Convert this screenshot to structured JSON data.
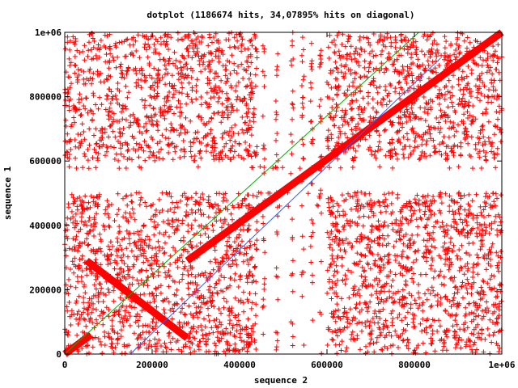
{
  "chart_data": {
    "type": "scatter",
    "title": "dotplot (1186674 hits, 34,07895% hits on diagonal)",
    "xlabel": "sequence 2",
    "ylabel": "sequence 1",
    "xlim": [
      0,
      1000000
    ],
    "ylim": [
      0,
      1000000
    ],
    "x_ticks": [
      0,
      200000,
      400000,
      600000,
      800000,
      1000000
    ],
    "x_tick_labels": [
      "0",
      "200000",
      "400000",
      "600000",
      "800000",
      "1e+06"
    ],
    "y_ticks": [
      0,
      200000,
      400000,
      600000,
      800000,
      1000000
    ],
    "y_tick_labels": [
      "0",
      "200000",
      "400000",
      "600000",
      "800000",
      "1e+06"
    ],
    "grid": false,
    "point_marker": "+",
    "colors": {
      "points": "#ff0000",
      "frame": "#000000",
      "guide_upper": "#00b000",
      "guide_lower": "#3060ff"
    },
    "diagonal_segments": [
      {
        "x": [
          0,
          60000
        ],
        "y": [
          0,
          60000
        ]
      },
      {
        "x": [
          280000,
          1000000
        ],
        "y": [
          290000,
          1000000
        ]
      }
    ],
    "inverted_segments": [
      {
        "x": [
          50000,
          280000
        ],
        "y": [
          290000,
          50000
        ]
      }
    ],
    "guide_lines": [
      {
        "color": "guide_upper",
        "x": [
          0,
          810000
        ],
        "y": [
          0,
          1000000
        ]
      },
      {
        "color": "guide_lower",
        "x": [
          150000,
          860000
        ],
        "y": [
          0,
          920000
        ]
      }
    ],
    "empty_bands": {
      "x": [
        [
          440000,
          600000
        ]
      ],
      "y": [
        [
          500000,
          600000
        ]
      ]
    },
    "sparse_columns_x": [
      420000,
      455000,
      485000,
      520000,
      545000,
      565000,
      585000
    ],
    "sparse_rows_y": [
      460000,
      500000,
      580000
    ]
  }
}
